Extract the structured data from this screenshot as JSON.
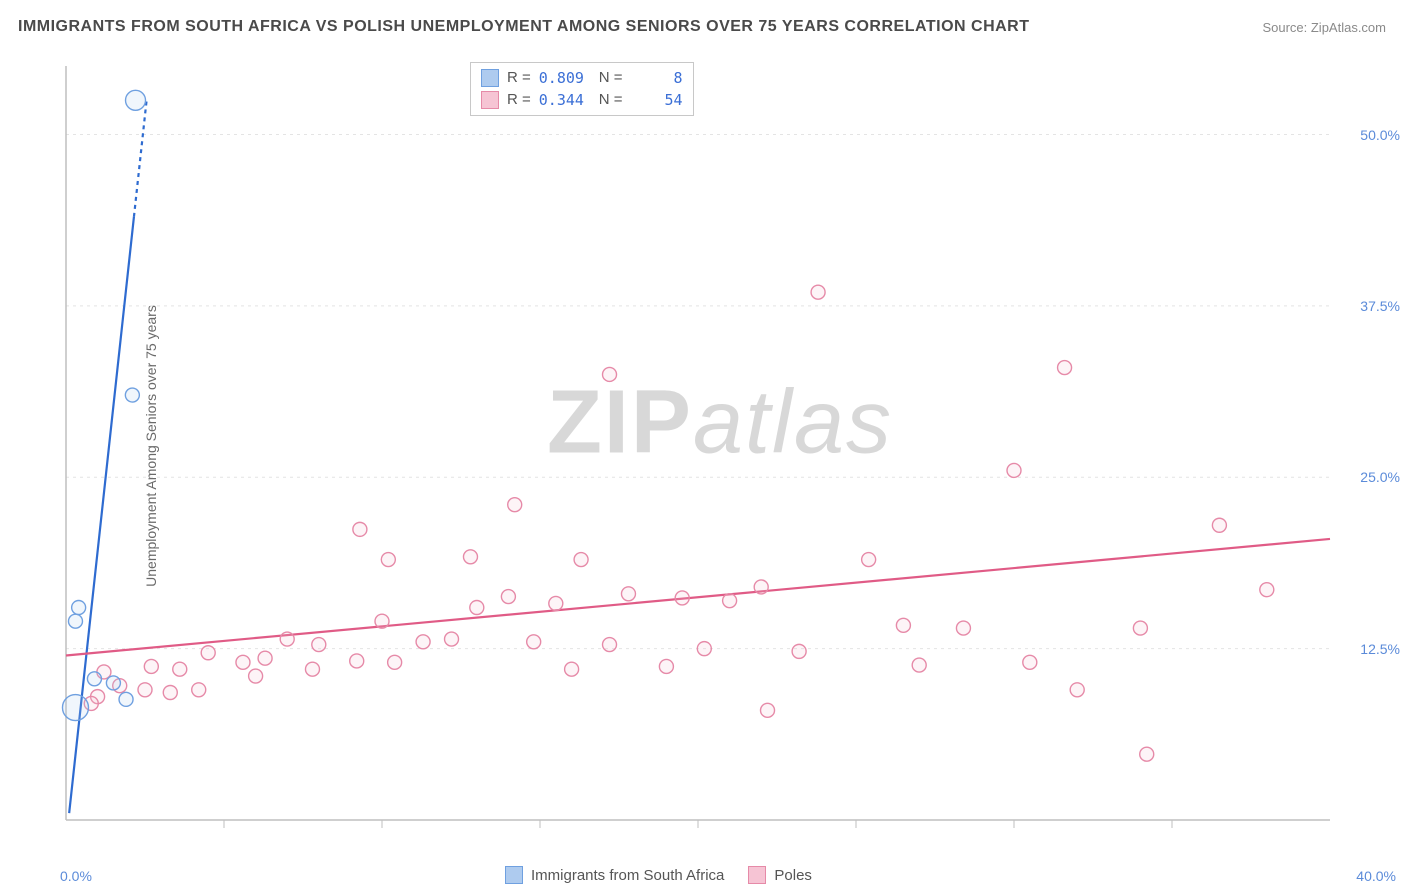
{
  "title": "IMMIGRANTS FROM SOUTH AFRICA VS POLISH UNEMPLOYMENT AMONG SENIORS OVER 75 YEARS CORRELATION CHART",
  "source_prefix": "Source: ",
  "source": "ZipAtlas.com",
  "watermark_zip": "ZIP",
  "watermark_atlas": "atlas",
  "y_axis_label": "Unemployment Among Seniors over 75 years",
  "chart": {
    "type": "scatter",
    "background_color": "#ffffff",
    "grid_color": "#e4e4e4",
    "axis_color": "#bfbfbf",
    "tick_font_color": "#5b8bd9",
    "tick_fontsize": 14,
    "title_fontsize": 16,
    "title_color": "#4a4a4a",
    "xlim": [
      0.0,
      40.0
    ],
    "ylim": [
      0.0,
      55.0
    ],
    "y_ticks": [
      12.5,
      25.0,
      37.5,
      50.0
    ],
    "y_tick_labels": [
      "12.5%",
      "25.0%",
      "37.5%",
      "50.0%"
    ],
    "x_tick_positions": [
      5,
      10,
      15,
      20,
      25,
      30,
      35
    ],
    "x_origin_label": "0.0%",
    "x_max_label": "40.0%",
    "marker_radius": 7,
    "marker_stroke_width": 1.4,
    "marker_fill_opacity": 0.18,
    "trend_line_width": 2.2,
    "trend_dash_extension": "4,4"
  },
  "series": [
    {
      "key": "south_africa",
      "label": "Immigrants from South Africa",
      "color_stroke": "#6fa0e0",
      "color_fill": "#aecbef",
      "trend_color": "#2e6bd0",
      "swatch_fill": "#aecbef",
      "swatch_border": "#6fa0e0",
      "R": "0.809",
      "N": "8",
      "trend": {
        "x1": 0.1,
        "y1": 0.5,
        "x2": 2.15,
        "y2": 44.0,
        "dash_to_y": 52.5
      },
      "points": [
        {
          "x": 2.2,
          "y": 52.5,
          "r": 10
        },
        {
          "x": 2.1,
          "y": 31.0,
          "r": 7
        },
        {
          "x": 0.4,
          "y": 15.5,
          "r": 7
        },
        {
          "x": 0.3,
          "y": 14.5,
          "r": 7
        },
        {
          "x": 0.9,
          "y": 10.3,
          "r": 7
        },
        {
          "x": 1.5,
          "y": 10.0,
          "r": 7
        },
        {
          "x": 0.3,
          "y": 8.2,
          "r": 13
        },
        {
          "x": 1.9,
          "y": 8.8,
          "r": 7
        }
      ]
    },
    {
      "key": "poles",
      "label": "Poles",
      "color_stroke": "#e68aa8",
      "color_fill": "#f6c4d4",
      "trend_color": "#e05b86",
      "swatch_fill": "#f6c4d4",
      "swatch_border": "#e68aa8",
      "R": "0.344",
      "N": "54",
      "trend": {
        "x1": 0.0,
        "y1": 12.0,
        "x2": 40.0,
        "y2": 20.5
      },
      "points": [
        {
          "x": 23.8,
          "y": 38.5
        },
        {
          "x": 31.6,
          "y": 33.0
        },
        {
          "x": 17.2,
          "y": 32.5
        },
        {
          "x": 30.0,
          "y": 25.5
        },
        {
          "x": 14.2,
          "y": 23.0
        },
        {
          "x": 36.5,
          "y": 21.5
        },
        {
          "x": 9.3,
          "y": 21.2
        },
        {
          "x": 25.4,
          "y": 19.0
        },
        {
          "x": 10.2,
          "y": 19.0
        },
        {
          "x": 12.8,
          "y": 19.2
        },
        {
          "x": 16.3,
          "y": 19.0
        },
        {
          "x": 22.0,
          "y": 17.0
        },
        {
          "x": 38.0,
          "y": 16.8
        },
        {
          "x": 14.0,
          "y": 16.3
        },
        {
          "x": 17.8,
          "y": 16.5
        },
        {
          "x": 19.5,
          "y": 16.2
        },
        {
          "x": 13.0,
          "y": 15.5
        },
        {
          "x": 15.5,
          "y": 15.8
        },
        {
          "x": 21.0,
          "y": 16.0
        },
        {
          "x": 10.0,
          "y": 14.5
        },
        {
          "x": 26.5,
          "y": 14.2
        },
        {
          "x": 28.4,
          "y": 14.0
        },
        {
          "x": 34.0,
          "y": 14.0
        },
        {
          "x": 11.3,
          "y": 13.0
        },
        {
          "x": 12.2,
          "y": 13.2
        },
        {
          "x": 14.8,
          "y": 13.0
        },
        {
          "x": 7.0,
          "y": 13.2
        },
        {
          "x": 8.0,
          "y": 12.8
        },
        {
          "x": 17.2,
          "y": 12.8
        },
        {
          "x": 20.2,
          "y": 12.5
        },
        {
          "x": 23.2,
          "y": 12.3
        },
        {
          "x": 4.5,
          "y": 12.2
        },
        {
          "x": 5.6,
          "y": 11.5
        },
        {
          "x": 6.3,
          "y": 11.8
        },
        {
          "x": 9.2,
          "y": 11.6
        },
        {
          "x": 10.4,
          "y": 11.5
        },
        {
          "x": 2.7,
          "y": 11.2
        },
        {
          "x": 3.6,
          "y": 11.0
        },
        {
          "x": 7.8,
          "y": 11.0
        },
        {
          "x": 6.0,
          "y": 10.5
        },
        {
          "x": 30.5,
          "y": 11.5
        },
        {
          "x": 27.0,
          "y": 11.3
        },
        {
          "x": 16.0,
          "y": 11.0
        },
        {
          "x": 19.0,
          "y": 11.2
        },
        {
          "x": 1.7,
          "y": 9.8
        },
        {
          "x": 2.5,
          "y": 9.5
        },
        {
          "x": 3.3,
          "y": 9.3
        },
        {
          "x": 4.2,
          "y": 9.5
        },
        {
          "x": 1.0,
          "y": 9.0
        },
        {
          "x": 32.0,
          "y": 9.5
        },
        {
          "x": 22.2,
          "y": 8.0
        },
        {
          "x": 34.2,
          "y": 4.8
        },
        {
          "x": 1.2,
          "y": 10.8
        },
        {
          "x": 0.8,
          "y": 8.5
        }
      ]
    }
  ],
  "legend_top": {
    "r_label": "R =",
    "n_label": "N ="
  },
  "legend_bottom": {
    "items": [
      "south_africa",
      "poles"
    ]
  }
}
